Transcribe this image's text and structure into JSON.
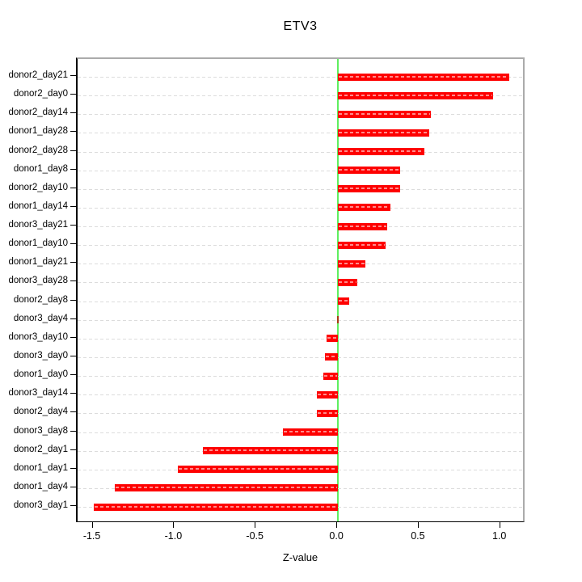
{
  "chart_data": {
    "type": "bar",
    "orientation": "horizontal",
    "title": "ETV3",
    "xlabel": "Z-value",
    "ylabel": "",
    "categories": [
      "donor2_day21",
      "donor2_day0",
      "donor2_day14",
      "donor1_day28",
      "donor2_day28",
      "donor1_day8",
      "donor2_day10",
      "donor1_day14",
      "donor3_day21",
      "donor1_day10",
      "donor1_day21",
      "donor3_day28",
      "donor2_day8",
      "donor3_day4",
      "donor3_day10",
      "donor3_day0",
      "donor1_day0",
      "donor3_day14",
      "donor2_day4",
      "donor3_day8",
      "donor2_day1",
      "donor1_day1",
      "donor1_day4",
      "donor3_day1"
    ],
    "values": [
      1.05,
      0.95,
      0.57,
      0.56,
      0.53,
      0.38,
      0.38,
      0.32,
      0.3,
      0.29,
      0.17,
      0.12,
      0.07,
      0.0,
      -0.07,
      -0.08,
      -0.09,
      -0.13,
      -0.13,
      -0.34,
      -0.83,
      -0.98,
      -1.37,
      -1.5
    ],
    "xlim": [
      -1.597,
      1.155
    ],
    "x_ticks": [
      "-1.5",
      "-1.0",
      "-0.5",
      "0.0",
      "0.5",
      "1.0"
    ],
    "grid": "horizontal dashed line per category",
    "legend": "none",
    "zero_line": true
  },
  "colors": {
    "bar": "#fe0000",
    "bar_dash_overlay": "rgba(255,255,255,0.55)",
    "zero_line": "#5fee5f",
    "gridline": "#dcdcdc",
    "box_top_right": "#ababab",
    "axis": "#000000",
    "background": "#ffffff",
    "near_zero_bar": "#a63c11"
  }
}
